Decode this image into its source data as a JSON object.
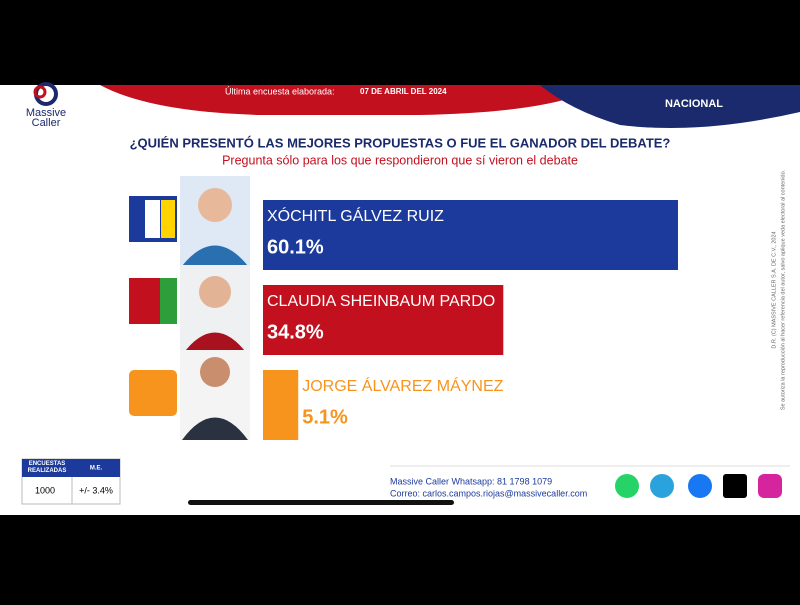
{
  "header": {
    "survey_label": "Última encuesta elaborada:",
    "survey_date": "07 DE ABRIL DEL 2024",
    "scope": "NACIONAL",
    "logo_top": "Massive",
    "logo_bottom": "Caller"
  },
  "chart_data": {
    "type": "bar",
    "orientation": "horizontal",
    "title": "¿QUIÉN PRESENTÓ LAS MEJORES PROPUESTAS O FUE EL GANADOR DEL DEBATE?",
    "subtitle": "Pregunta sólo para los que respondieron que sí vieron el debate",
    "categories": [
      "XÓCHITL GÁLVEZ RUIZ",
      "CLAUDIA SHEINBAUM PARDO",
      "JORGE ÁLVAREZ MÁYNEZ"
    ],
    "values": [
      60.1,
      34.8,
      5.1
    ],
    "value_labels": [
      "60.1%",
      "34.8%",
      "5.1%"
    ],
    "colors": [
      "#1c3a9c",
      "#c3101f",
      "#f7941d"
    ]
  },
  "survey_table": {
    "headers": [
      "ENCUESTAS REALIZADAS",
      "M.E."
    ],
    "row": [
      "1000",
      "+/- 3.4%"
    ]
  },
  "footer": {
    "whatsapp": "Massive Caller Whatsapp: 81 1798 1079",
    "email": "Correo: carlos.campos.riojas@massivecaller.com"
  },
  "side_note": {
    "copyright": "D.R. (C) MASSIVE CALLER S.A. DE C.V., 2024",
    "disclaimer": "Se autoriza la reproducción al hacer referencia del autor, salvo aplique veda electoral al contenido."
  }
}
